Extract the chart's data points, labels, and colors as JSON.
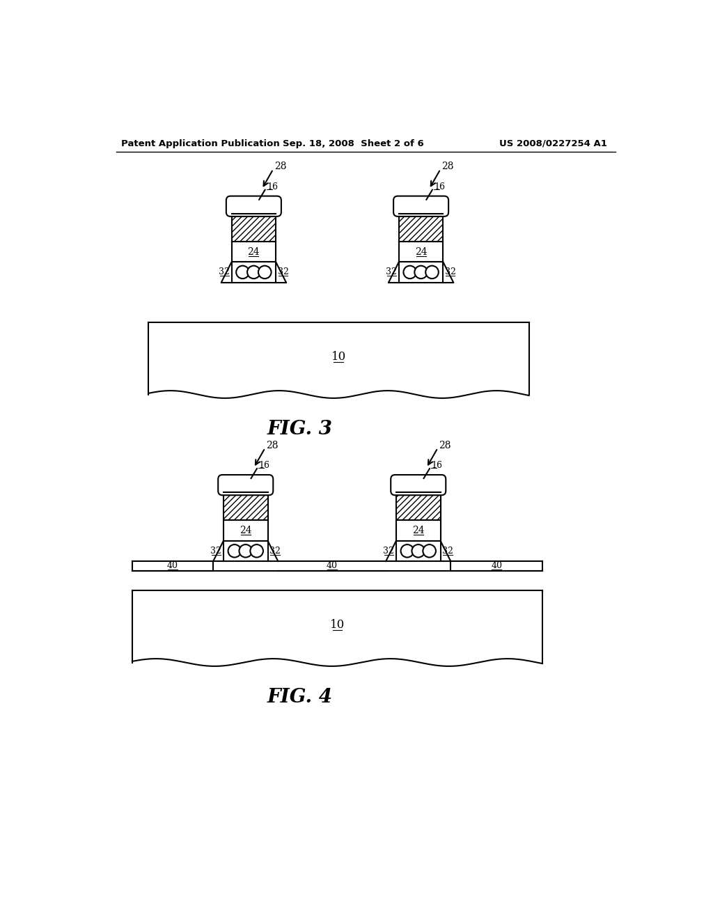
{
  "header_left": "Patent Application Publication",
  "header_mid": "Sep. 18, 2008  Sheet 2 of 6",
  "header_right": "US 2008/0227254 A1",
  "fig3_label": "FIG. 3",
  "fig4_label": "FIG. 4",
  "label_10": "10",
  "label_16": "16",
  "label_24": "24",
  "label_28": "28",
  "label_32": "32",
  "label_40": "40",
  "bg_color": "#ffffff",
  "line_color": "#000000"
}
